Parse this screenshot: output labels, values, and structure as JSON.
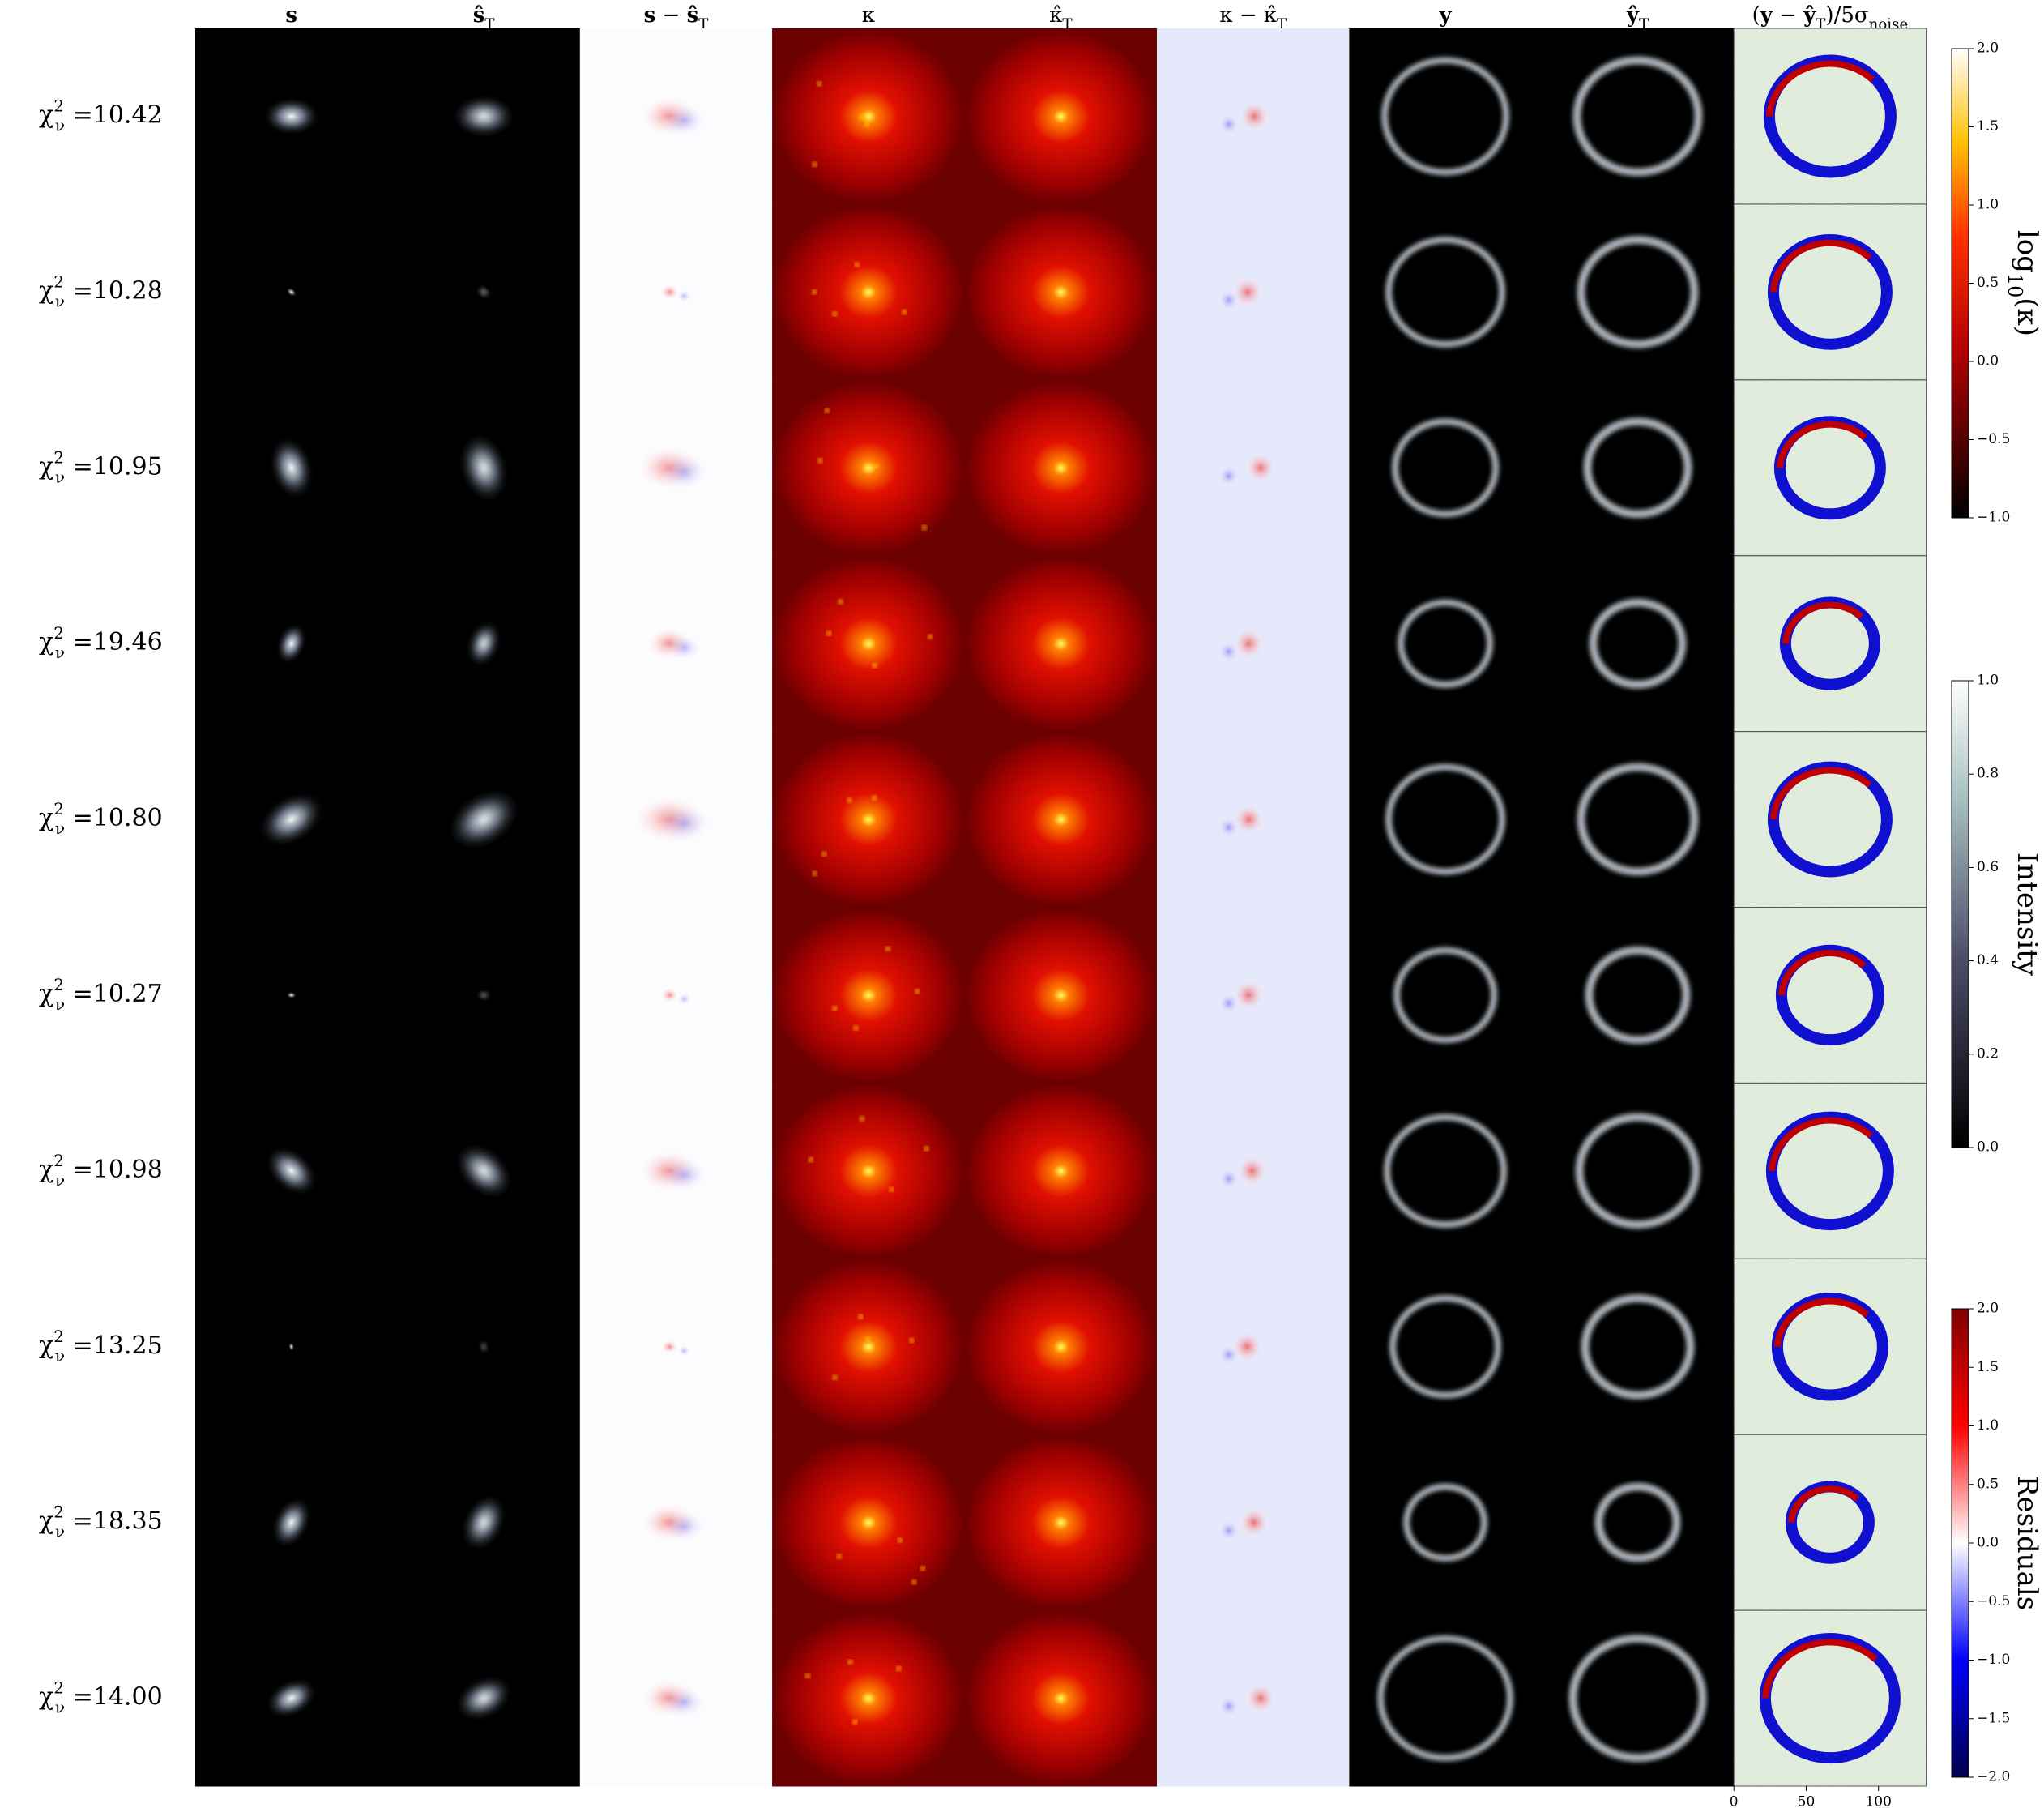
{
  "columns": [
    {
      "parts": [
        {
          "text": "s",
          "bold": true
        }
      ]
    },
    {
      "parts": [
        {
          "text": "ŝ",
          "bold": true
        },
        {
          "text": "T",
          "sub": true
        }
      ]
    },
    {
      "parts": [
        {
          "text": "s",
          "bold": true
        },
        {
          "text": " − "
        },
        {
          "text": "ŝ",
          "bold": true
        },
        {
          "text": "T",
          "sub": true
        }
      ]
    },
    {
      "parts": [
        {
          "text": "κ"
        }
      ]
    },
    {
      "parts": [
        {
          "text": "κ̂"
        },
        {
          "text": "T",
          "sub": true
        }
      ]
    },
    {
      "parts": [
        {
          "text": "κ − κ̂"
        },
        {
          "text": "T",
          "sub": true
        }
      ]
    },
    {
      "parts": [
        {
          "text": "y",
          "bold": true
        }
      ]
    },
    {
      "parts": [
        {
          "text": "ŷ",
          "bold": true
        },
        {
          "text": "T",
          "sub": true
        }
      ]
    },
    {
      "parts": [
        {
          "text": "("
        },
        {
          "text": "y",
          "bold": true
        },
        {
          "text": " − "
        },
        {
          "text": "ŷ",
          "bold": true
        },
        {
          "text": "T",
          "sub": true
        },
        {
          "text": ")/5σ"
        },
        {
          "text": "noise",
          "sub": true
        }
      ]
    }
  ],
  "row_label": {
    "symbol": "χ",
    "sup": "2",
    "sub": "ν",
    "sep": " ="
  },
  "rows": [
    "10.42",
    "10.28",
    "10.95",
    "19.46",
    "10.80",
    "10.27",
    "10.98",
    "13.25",
    "18.35",
    "14.00"
  ],
  "colorbars": [
    {
      "label_parts": [
        {
          "text": "log"
        },
        {
          "text": "10",
          "sub": true
        },
        {
          "text": "(κ)"
        }
      ],
      "lim": [
        -1,
        2
      ],
      "ticks": [
        {
          "value": -1,
          "label": "−1.0"
        },
        {
          "value": -0.5,
          "label": "−0.5"
        },
        {
          "value": 0,
          "label": "0.0"
        },
        {
          "value": 0.5,
          "label": "0.5"
        },
        {
          "value": 1,
          "label": "1.0"
        },
        {
          "value": 1.5,
          "label": "1.5"
        },
        {
          "value": 2,
          "label": "2.0"
        }
      ]
    },
    {
      "label_parts": [
        {
          "text": "Intensity"
        }
      ],
      "lim": [
        0,
        1
      ],
      "ticks": [
        {
          "value": 0,
          "label": "0.0"
        },
        {
          "value": 0.2,
          "label": "0.2"
        },
        {
          "value": 0.4,
          "label": "0.4"
        },
        {
          "value": 0.6,
          "label": "0.6"
        },
        {
          "value": 0.8,
          "label": "0.8"
        },
        {
          "value": 1,
          "label": "1.0"
        }
      ]
    },
    {
      "label_parts": [
        {
          "text": "Residuals"
        }
      ],
      "lim": [
        -2,
        2
      ],
      "ticks": [
        {
          "value": -2,
          "label": "−2.0"
        },
        {
          "value": -1.5,
          "label": "−1.5"
        },
        {
          "value": -1,
          "label": "−1.0"
        },
        {
          "value": -0.5,
          "label": "−0.5"
        },
        {
          "value": 0,
          "label": "0.0"
        },
        {
          "value": 0.5,
          "label": "0.5"
        },
        {
          "value": 1,
          "label": "1.0"
        },
        {
          "value": 1.5,
          "label": "1.5"
        },
        {
          "value": 2,
          "label": "2.0"
        }
      ]
    }
  ],
  "pixel_axis": {
    "xlim": [
      0,
      133
    ],
    "xticks": [
      0,
      50,
      100
    ],
    "yticks": [
      0
    ]
  }
}
